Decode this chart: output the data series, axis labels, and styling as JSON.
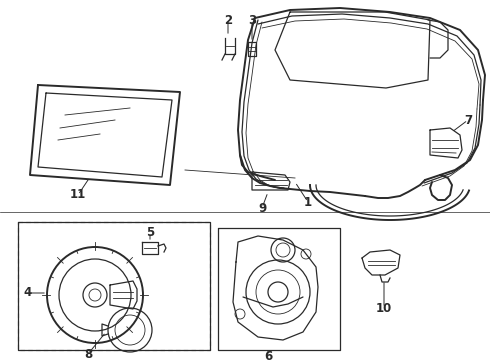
{
  "bg_color": "#ffffff",
  "line_color": "#2a2a2a",
  "label_color": "#111111",
  "lw_main": 1.4,
  "lw_med": 0.9,
  "lw_thin": 0.6,
  "label_fs": 8.5
}
